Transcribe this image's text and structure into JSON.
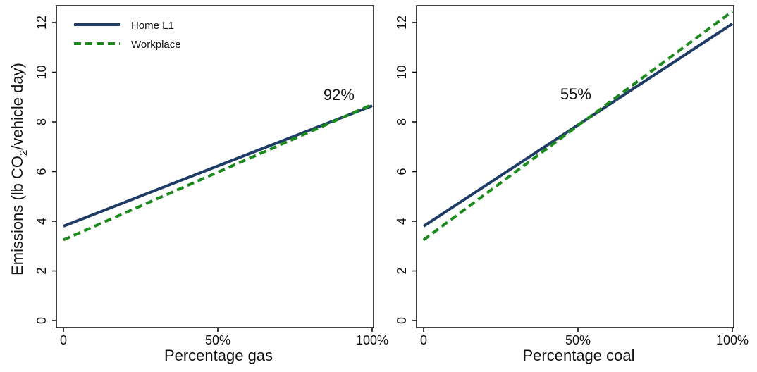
{
  "figure": {
    "ylabel_main": "Emissions (lb CO",
    "ylabel_sub": "2",
    "ylabel_tail": "/vehicle day)"
  },
  "legend": {
    "items": [
      {
        "label": "Home L1",
        "color": "#1f3c66",
        "dash": "solid"
      },
      {
        "label": "Workplace",
        "color": "#1a8a1a",
        "dash": "dashed"
      }
    ]
  },
  "chart_data": [
    {
      "type": "line",
      "xlabel": "Percentage gas",
      "ylabel": "Emissions (lb CO2/vehicle day)",
      "xlim": [
        0,
        100
      ],
      "ylim": [
        0,
        12.6
      ],
      "xticks": [
        0,
        50,
        100
      ],
      "xtick_labels": [
        "0",
        "50%",
        "100%"
      ],
      "yticks": [
        0,
        2,
        4,
        6,
        8,
        10,
        12
      ],
      "ytick_labels": [
        "0",
        "2",
        "4",
        "6",
        "8",
        "10",
        "12"
      ],
      "series": [
        {
          "name": "Home L1",
          "x": [
            0,
            100
          ],
          "y": [
            3.8,
            8.65
          ],
          "color": "#1f3c66",
          "dash": "solid"
        },
        {
          "name": "Workplace",
          "x": [
            0,
            100
          ],
          "y": [
            3.25,
            8.7
          ],
          "color": "#1a8a1a",
          "dash": "dashed"
        }
      ],
      "annotations": [
        {
          "text": "92%",
          "x": 92
        }
      ],
      "grid": false
    },
    {
      "type": "line",
      "xlabel": "Percentage coal",
      "ylabel": "",
      "xlim": [
        0,
        100
      ],
      "ylim": [
        0,
        12.6
      ],
      "xticks": [
        0,
        50,
        100
      ],
      "xtick_labels": [
        "0",
        "50%",
        "100%"
      ],
      "yticks": [
        0,
        2,
        4,
        6,
        8,
        10,
        12
      ],
      "ytick_labels": [
        "0",
        "2",
        "4",
        "6",
        "8",
        "10",
        "12"
      ],
      "series": [
        {
          "name": "Home L1",
          "x": [
            0,
            100
          ],
          "y": [
            3.8,
            11.95
          ],
          "color": "#1f3c66",
          "dash": "solid"
        },
        {
          "name": "Workplace",
          "x": [
            0,
            100
          ],
          "y": [
            3.25,
            12.45
          ],
          "color": "#1a8a1a",
          "dash": "dashed"
        }
      ],
      "annotations": [
        {
          "text": "55%",
          "x": 55
        }
      ],
      "grid": false
    }
  ]
}
